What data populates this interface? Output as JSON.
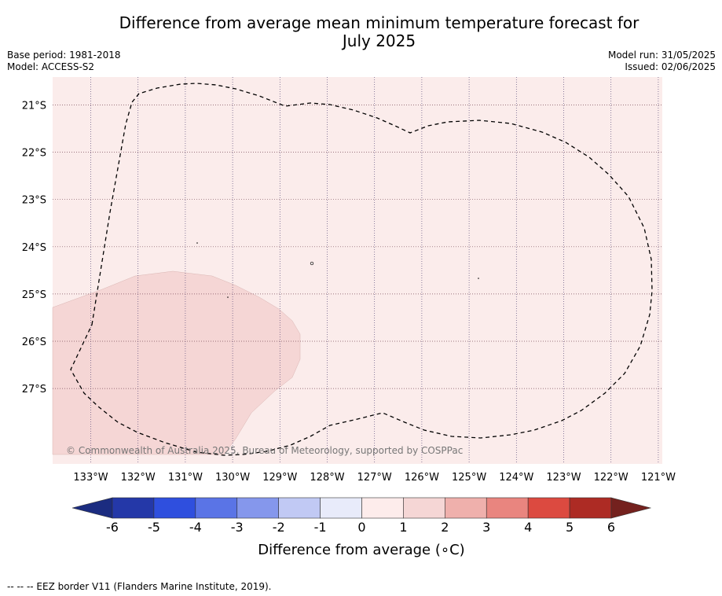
{
  "title": {
    "line1": "Difference from average mean minimum temperature forecast for",
    "line2": "July 2025"
  },
  "meta": {
    "base_period": "Base period: 1981-2018",
    "model": "Model: ACCESS-S2",
    "model_run": "Model run: 31/05/2025",
    "issued": "Issued: 02/06/2025"
  },
  "map": {
    "background_color": "#fbeceb",
    "anomaly_patch_color": "#f5d6d5",
    "longitude_labels": [
      "133°W",
      "132°W",
      "131°W",
      "130°W",
      "129°W",
      "128°W",
      "127°W",
      "126°W",
      "125°W",
      "124°W",
      "123°W",
      "122°W",
      "121°W"
    ],
    "latitude_labels": [
      "21°S",
      "22°S",
      "23°S",
      "24°S",
      "25°S",
      "26°S",
      "27°S"
    ],
    "copyright": "© Commonwealth of Australia 2025, Bureau of Meteorology, supported by COSPPac",
    "eez_border": "dashed"
  },
  "colorbar": {
    "title": "Difference from average (∘C)",
    "ticks": [
      "-6",
      "-5",
      "-4",
      "-3",
      "-2",
      "-1",
      "0",
      "1",
      "2",
      "3",
      "4",
      "5",
      "6"
    ],
    "low_extend_color": "#1b2c80",
    "high_extend_color": "#74211e",
    "colors": [
      "#2438a8",
      "#2f4fde",
      "#5a74e6",
      "#8597ec",
      "#c1c9f4",
      "#e8ebfa",
      "#fdeceb",
      "#f5d6d5",
      "#efb0ac",
      "#e9857f",
      "#dc4a40",
      "#ad2b24"
    ]
  },
  "footnote": "-- -- -- EEZ border V11 (Flanders Marine Institute, 2019)."
}
